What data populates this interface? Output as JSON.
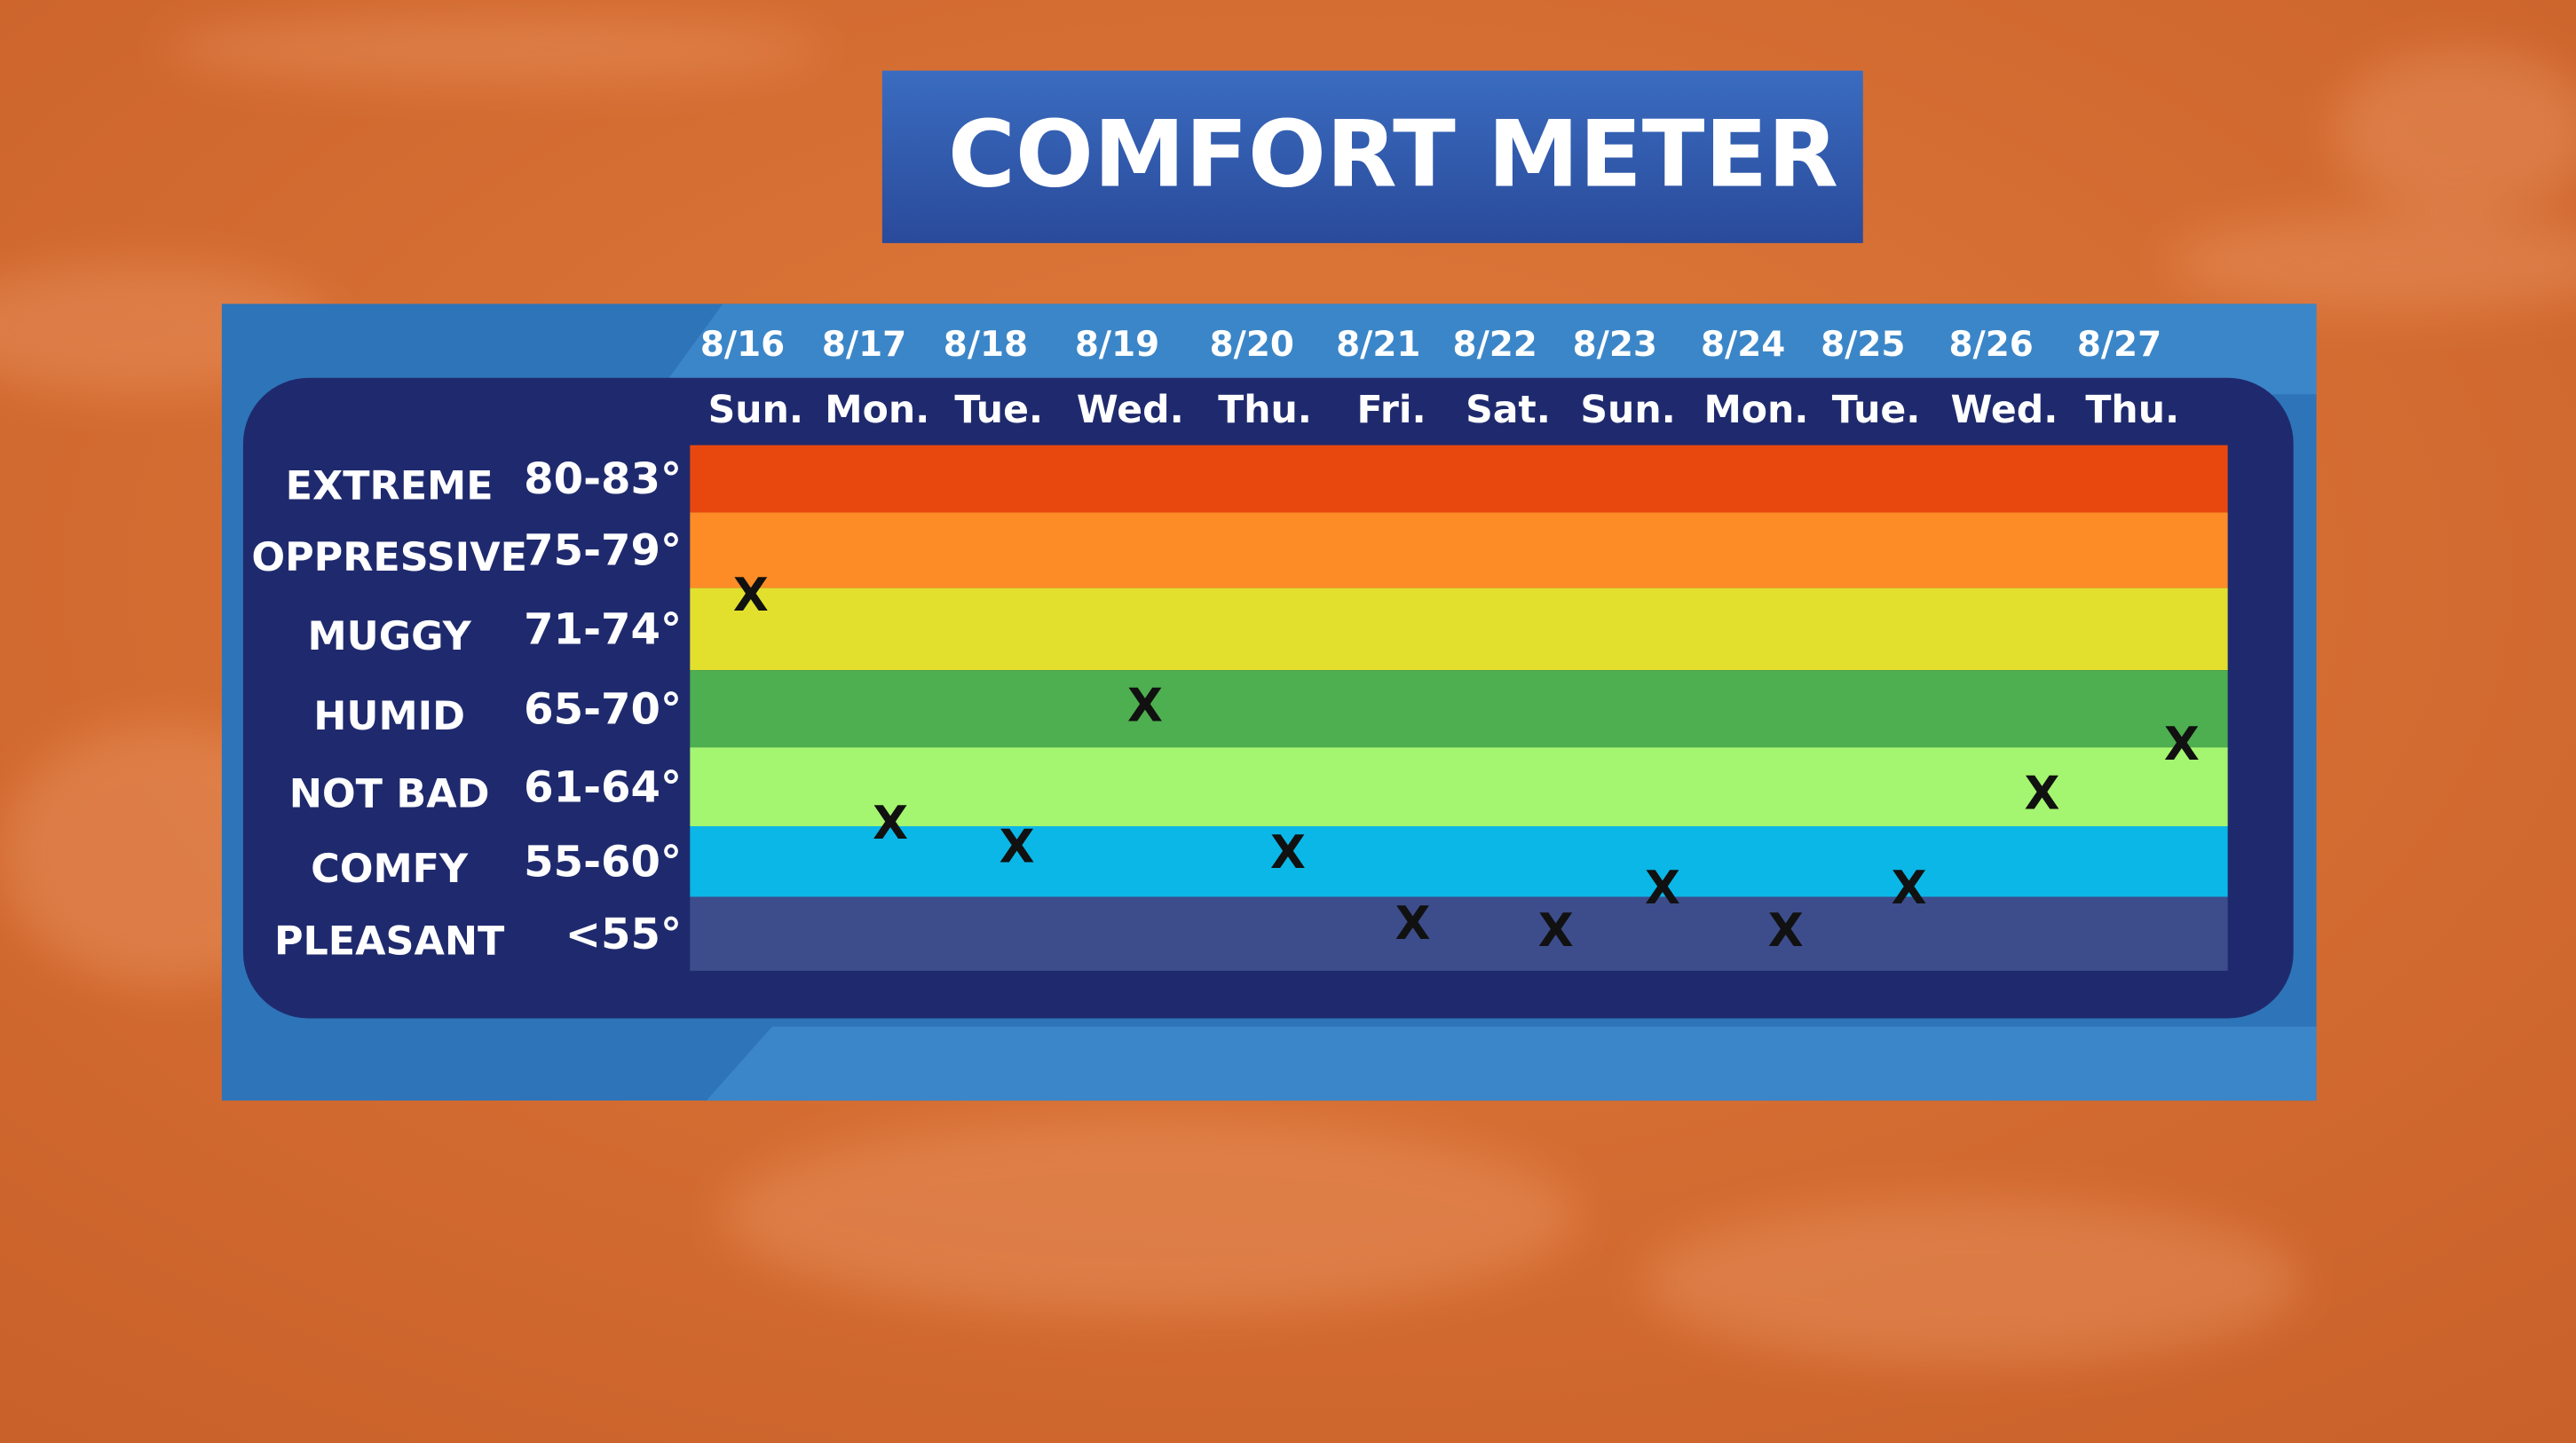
{
  "title": "COMFORT METER",
  "chart_data": {
    "type": "comfort",
    "categories": [
      "8/16",
      "8/17",
      "8/18",
      "8/19",
      "8/20",
      "8/21",
      "8/22",
      "8/23",
      "8/24",
      "8/25",
      "8/26",
      "8/27"
    ],
    "days": [
      "Sun.",
      "Mon.",
      "Tue.",
      "Wed.",
      "Thu.",
      "Fri.",
      "Sat.",
      "Sun.",
      "Mon.",
      "Tue.",
      "Wed.",
      "Thu."
    ],
    "bands": [
      {
        "label": "EXTREME",
        "range": "80-83°",
        "low": 80,
        "color": "#e8480e"
      },
      {
        "label": "OPPRESSIVE",
        "range": "75-79°",
        "low": 75,
        "color": "#fd8c26"
      },
      {
        "label": "MUGGY",
        "range": "71-74°",
        "low": 71,
        "color": "#e2e02c"
      },
      {
        "label": "HUMID",
        "range": "65-70°",
        "low": 65,
        "color": "#4daf4f"
      },
      {
        "label": "NOT BAD",
        "range": "61-64°",
        "low": 61,
        "color": "#a4f56f"
      },
      {
        "label": "COMFY",
        "range": "55-60°",
        "low": 55,
        "color": "#0bb7e6"
      },
      {
        "label": "PLEASANT",
        "range": "<55°",
        "color": "#3d4d8c"
      }
    ],
    "ylim": [
      50,
      84
    ],
    "series": [
      {
        "marker": "X",
        "color": "#111111",
        "values": [
          74.5,
          61,
          59,
          68,
          58.5,
          53,
          52.5,
          55.5,
          52.5,
          55.5,
          62.5,
          65
        ]
      }
    ]
  }
}
